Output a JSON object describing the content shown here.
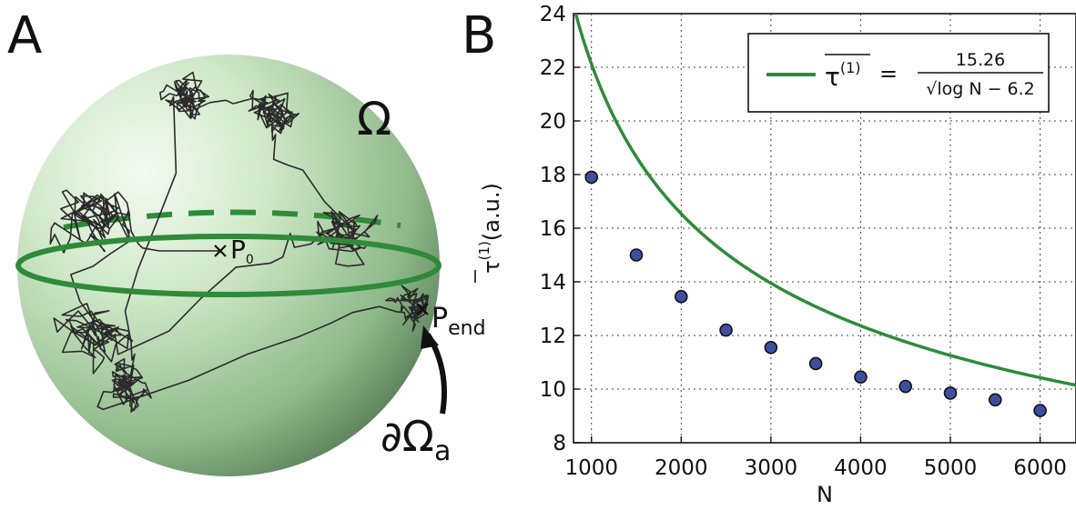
{
  "panels": {
    "a_letter": "A",
    "b_letter": "B"
  },
  "sphere": {
    "domain_label": "Ω",
    "start_label_main": "P",
    "start_label_sub": "0",
    "end_label_main": "P",
    "end_label_sub": "end",
    "boundary_label_main": "∂Ω",
    "boundary_label_sub": "a",
    "colors": {
      "sphere_light": "#eaf6e6",
      "sphere_dark": "#557a55",
      "equator": "#2f8a3a",
      "path": "#2a2a2a"
    }
  },
  "chart_data": {
    "type": "scatter",
    "xlabel": "N",
    "ylabel_main": "τ",
    "ylabel_sup": "(1)",
    "ylabel_unit": "(a.u.)",
    "xlim": [
      800,
      6400
    ],
    "ylim": [
      8,
      24
    ],
    "xticks": [
      1000,
      2000,
      3000,
      4000,
      5000,
      6000
    ],
    "yticks": [
      8,
      10,
      12,
      14,
      16,
      18,
      20,
      22,
      24
    ],
    "grid": true,
    "legend_position": "top-right",
    "series": [
      {
        "kind": "points",
        "color": "#3d4fa0",
        "x": [
          1000,
          1500,
          2000,
          2500,
          3000,
          3500,
          4000,
          4500,
          5000,
          5500,
          6000
        ],
        "y": [
          17.9,
          15.0,
          13.45,
          12.2,
          11.55,
          10.95,
          10.45,
          10.1,
          9.85,
          9.6,
          9.2
        ]
      },
      {
        "kind": "fit",
        "color": "#2e8b3a",
        "numerator": 15.26,
        "offset": 6.2
      }
    ],
    "legend": {
      "lhs_main": "τ",
      "lhs_sup": "(1)",
      "equals": "=",
      "numerator": "15.26",
      "denominator": "√log N − 6.2"
    }
  }
}
